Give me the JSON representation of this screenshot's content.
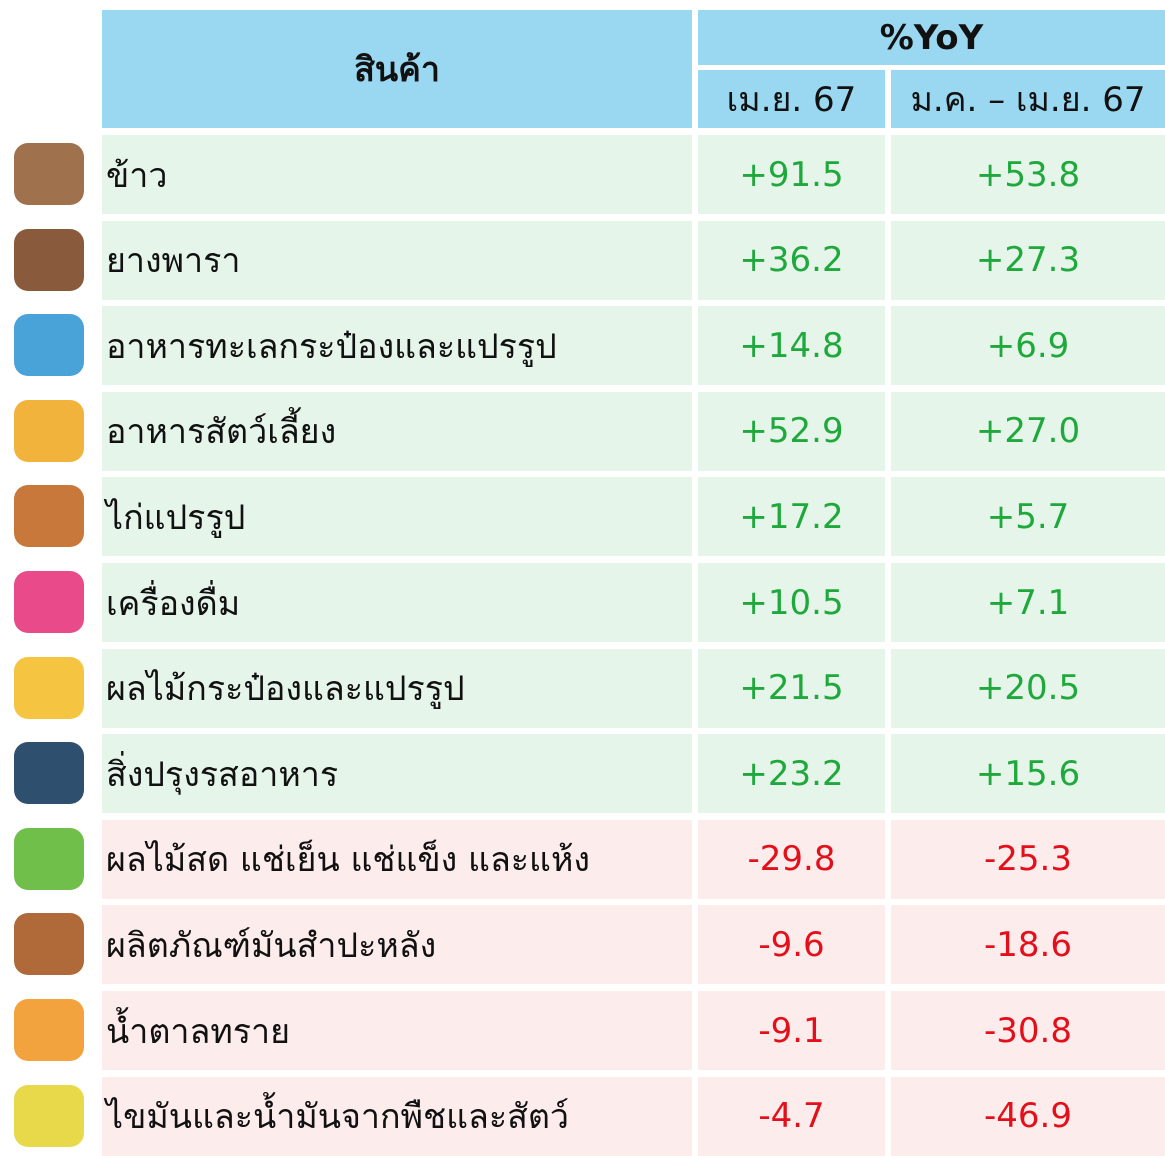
{
  "header": {
    "product": "สินค้า",
    "group": "%YoY",
    "col1": "เม.ย. 67",
    "col2": "ม.ค. – เม.ย. 67"
  },
  "table": {
    "rows": [
      [
        "ข้าว",
        "+91.5",
        "+53.8"
      ],
      [
        "ยางพารา",
        "+36.2",
        "+27.3"
      ],
      [
        "อาหารทะเลกระป๋องและแปรรูป",
        "+14.8",
        "+6.9"
      ],
      [
        "อาหารสัตว์เลี้ยง",
        "+52.9",
        "+27.0"
      ],
      [
        "ไก่แปรรูป",
        "+17.2",
        "+5.7"
      ],
      [
        "เครื่องดื่ม",
        "+10.5",
        "+7.1"
      ],
      [
        "ผลไม้กระป๋องและแปรรูป",
        "+21.5",
        "+20.5"
      ],
      [
        "สิ่งปรุงรสอาหาร",
        "+23.2",
        "+15.6"
      ],
      [
        "ผลไม้สด แช่เย็น แช่แข็ง และแห้ง",
        "-29.8",
        "-25.3"
      ],
      [
        "ผลิตภัณฑ์มันสำปะหลัง",
        "-9.6",
        "-18.6"
      ],
      [
        "น้ำตาลทราย",
        "-9.1",
        "-30.8"
      ],
      [
        "ไขมันและน้ำมันจากพืชและสัตว์",
        "-4.7",
        "-46.9"
      ]
    ]
  }
}
